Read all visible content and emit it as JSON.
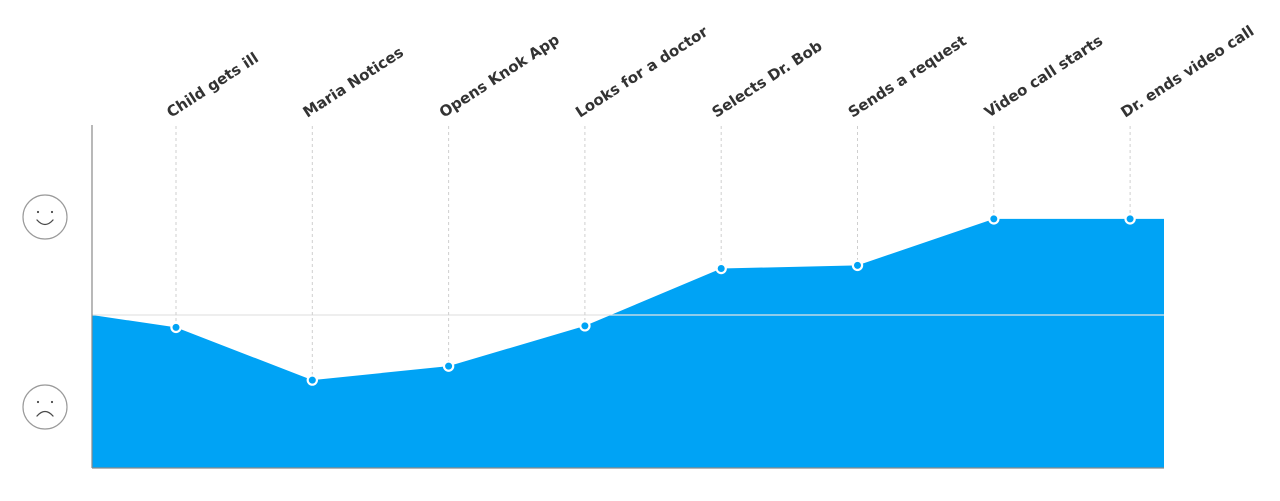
{
  "chart_data": {
    "type": "area",
    "title": "",
    "xlabel": "",
    "ylabel": "",
    "y_axis_icons": [
      "happy-face-icon",
      "sad-face-icon"
    ],
    "ylim": [
      -1,
      1
    ],
    "baseline": 0,
    "categories": [
      "Child gets ill",
      "Maria Notices",
      "Opens Knok App",
      "Looks for a doctor",
      "Selects Dr. Bob",
      "Sends a request",
      "Video call starts",
      "Dr. ends video call"
    ],
    "values": [
      -0.08,
      -0.42,
      -0.33,
      -0.07,
      0.3,
      0.32,
      0.62,
      0.62
    ],
    "start_value": 0.0,
    "end_value": 0.62,
    "colors": {
      "fill": "#00a3f5",
      "baseline": "#e4e4e4",
      "axis": "#8a8a8a",
      "guide": "#cfcfcf",
      "marker_stroke": "#ffffff"
    }
  }
}
